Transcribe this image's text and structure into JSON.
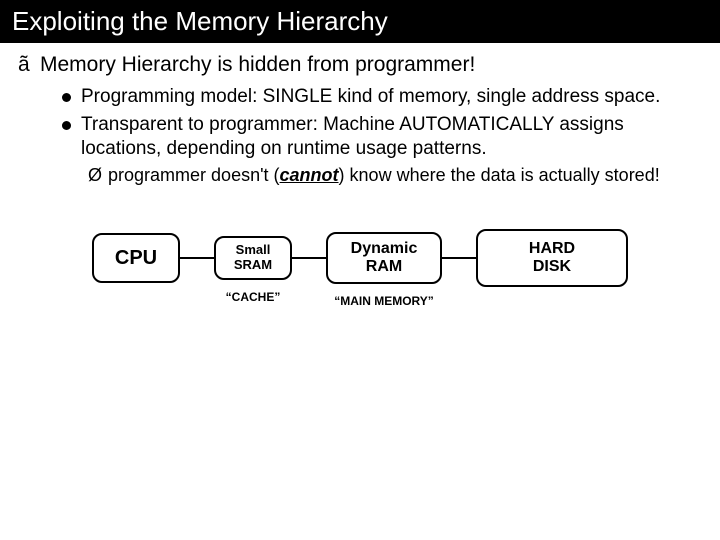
{
  "title": "Exploiting the Memory Hierarchy",
  "main_bullet": {
    "marker": "ã",
    "text": "Memory Hierarchy is hidden from programmer!"
  },
  "sub_bullets": [
    "Programming model: SINGLE kind of memory, single address space.",
    "Transparent to programmer:  Machine AUTOMATICALLY assigns locations, depending on runtime usage patterns."
  ],
  "subsub": {
    "marker": "Ø",
    "pre": "programmer doesn't (",
    "em": "cannot",
    "post": ") know where the data is actually stored!"
  },
  "diagram": {
    "boxes": {
      "cpu": "CPU",
      "sram_l1": "Small",
      "sram_l2": "SRAM",
      "dram_l1": "Dynamic",
      "dram_l2": "RAM",
      "disk_l1": "HARD",
      "disk_l2": "DISK"
    },
    "labels": {
      "sram": "“CACHE”",
      "dram": "“MAIN MEMORY”"
    },
    "colors": {
      "background": "#ffffff",
      "text": "#000000",
      "box_border": "#000000",
      "connector": "#000000"
    }
  }
}
